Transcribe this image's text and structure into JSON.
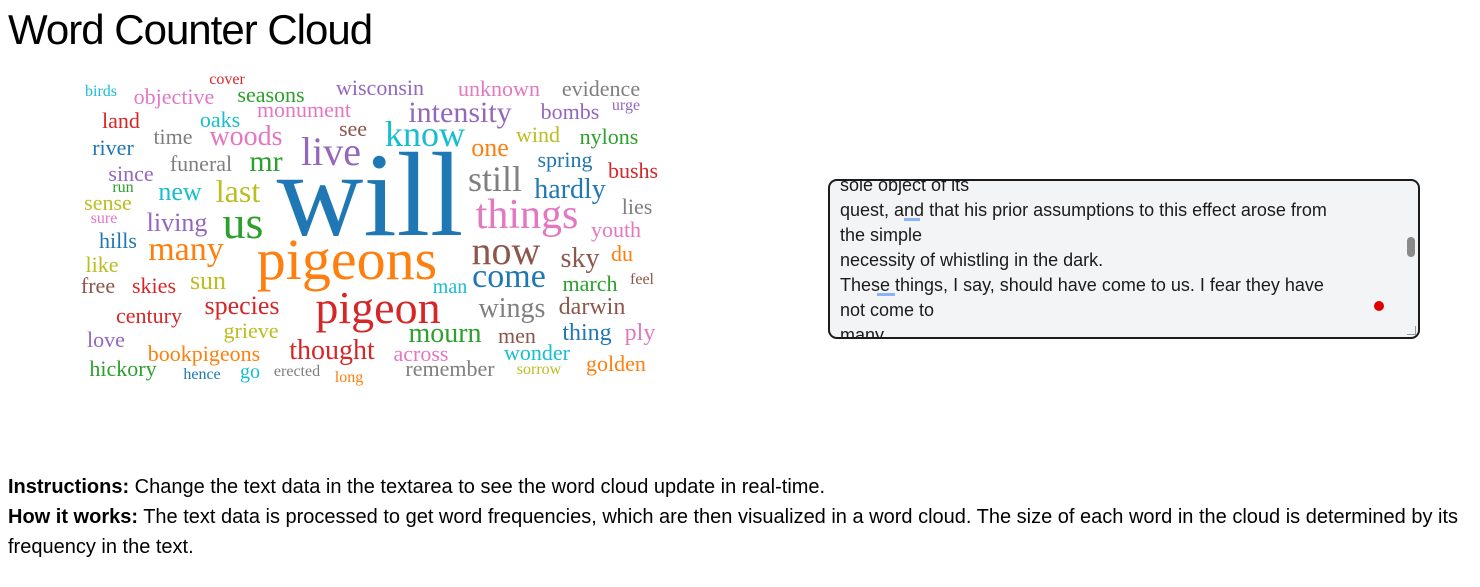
{
  "title": "Word Counter Cloud",
  "cloud_words": [
    {
      "text": "will",
      "color": "#1f77b4"
    },
    {
      "text": "pigeons",
      "color": "#ff7f0e"
    },
    {
      "text": "pigeon",
      "color": "#d62728"
    },
    {
      "text": "us",
      "color": "#2ca02c"
    },
    {
      "text": "things",
      "color": "#e377c2"
    },
    {
      "text": "now",
      "color": "#8c564b"
    },
    {
      "text": "live",
      "color": "#9467bd"
    },
    {
      "text": "still",
      "color": "#7f7f7f"
    },
    {
      "text": "know",
      "color": "#17becf"
    },
    {
      "text": "come",
      "color": "#1f77b4"
    },
    {
      "text": "many",
      "color": "#ff7f0e"
    },
    {
      "text": "last",
      "color": "#bcbd22"
    },
    {
      "text": "mr",
      "color": "#2ca02c"
    },
    {
      "text": "intensity",
      "color": "#9467bd"
    },
    {
      "text": "woods",
      "color": "#e377c2"
    },
    {
      "text": "thought",
      "color": "#d62728"
    },
    {
      "text": "mourn",
      "color": "#2ca02c"
    },
    {
      "text": "hardly",
      "color": "#1f77b4"
    },
    {
      "text": "wings",
      "color": "#7f7f7f"
    },
    {
      "text": "species",
      "color": "#d62728"
    },
    {
      "text": "sky",
      "color": "#8c564b"
    },
    {
      "text": "one",
      "color": "#ff7f0e"
    },
    {
      "text": "new",
      "color": "#17becf"
    },
    {
      "text": "living",
      "color": "#9467bd"
    },
    {
      "text": "sun",
      "color": "#bcbd22"
    },
    {
      "text": "darwin",
      "color": "#8c564b"
    },
    {
      "text": "thing",
      "color": "#1f77b4"
    },
    {
      "text": "ply",
      "color": "#e377c2"
    },
    {
      "text": "bookpigeons",
      "color": "#ff7f0e"
    },
    {
      "text": "wonder",
      "color": "#17becf"
    },
    {
      "text": "across",
      "color": "#e377c2"
    },
    {
      "text": "golden",
      "color": "#ff7f0e"
    },
    {
      "text": "remember",
      "color": "#7f7f7f"
    },
    {
      "text": "men",
      "color": "#8c564b"
    },
    {
      "text": "hickory",
      "color": "#2ca02c"
    },
    {
      "text": "grieve",
      "color": "#bcbd22"
    },
    {
      "text": "century",
      "color": "#d62728"
    },
    {
      "text": "love",
      "color": "#9467bd"
    },
    {
      "text": "skies",
      "color": "#d62728"
    },
    {
      "text": "free",
      "color": "#8c564b"
    },
    {
      "text": "march",
      "color": "#2ca02c"
    },
    {
      "text": "man",
      "color": "#17becf"
    },
    {
      "text": "youth",
      "color": "#e377c2"
    },
    {
      "text": "lies",
      "color": "#7f7f7f"
    },
    {
      "text": "bushs",
      "color": "#d62728"
    },
    {
      "text": "spring",
      "color": "#1f77b4"
    },
    {
      "text": "nylons",
      "color": "#2ca02c"
    },
    {
      "text": "wind",
      "color": "#bcbd22"
    },
    {
      "text": "bombs",
      "color": "#9467bd"
    },
    {
      "text": "urge",
      "color": "#9467bd"
    },
    {
      "text": "evidence",
      "color": "#7f7f7f"
    },
    {
      "text": "unknown",
      "color": "#e377c2"
    },
    {
      "text": "wisconsin",
      "color": "#9467bd"
    },
    {
      "text": "seasons",
      "color": "#2ca02c"
    },
    {
      "text": "cover",
      "color": "#d62728"
    },
    {
      "text": "objective",
      "color": "#e377c2"
    },
    {
      "text": "birds",
      "color": "#17becf"
    },
    {
      "text": "land",
      "color": "#d62728"
    },
    {
      "text": "oaks",
      "color": "#17becf"
    },
    {
      "text": "monument",
      "color": "#e377c2"
    },
    {
      "text": "time",
      "color": "#7f7f7f"
    },
    {
      "text": "see",
      "color": "#8c564b"
    },
    {
      "text": "river",
      "color": "#1f77b4"
    },
    {
      "text": "funeral",
      "color": "#7f7f7f"
    },
    {
      "text": "since",
      "color": "#9467bd"
    },
    {
      "text": "run",
      "color": "#2ca02c"
    },
    {
      "text": "sense",
      "color": "#bcbd22"
    },
    {
      "text": "sure",
      "color": "#e377c2"
    },
    {
      "text": "hills",
      "color": "#1f77b4"
    },
    {
      "text": "like",
      "color": "#bcbd22"
    },
    {
      "text": "du",
      "color": "#ff7f0e"
    },
    {
      "text": "feel",
      "color": "#8c564b"
    },
    {
      "text": "hence",
      "color": "#1f77b4"
    },
    {
      "text": "go",
      "color": "#17becf"
    },
    {
      "text": "erected",
      "color": "#7f7f7f"
    },
    {
      "text": "long",
      "color": "#ff7f0e"
    },
    {
      "text": "sorrow",
      "color": "#bcbd22"
    }
  ],
  "textarea_lines": [
    "sole object of its",
    "quest, and that his prior assumptions to this effect arose from",
    "the simple",
    "necessity of whistling in the dark.",
    "These things, I say, should have come to us. I fear they have",
    "not come to",
    "many"
  ],
  "instructions_label": "Instructions:",
  "instructions_text": " Change the text data in the textarea to see the word cloud update in real-time.",
  "how_label": "How it works:",
  "how_text": " The text data is processed to get word frequencies, which are then visualized in a word cloud. The size of each word in the cloud is determined by its frequency in the text."
}
